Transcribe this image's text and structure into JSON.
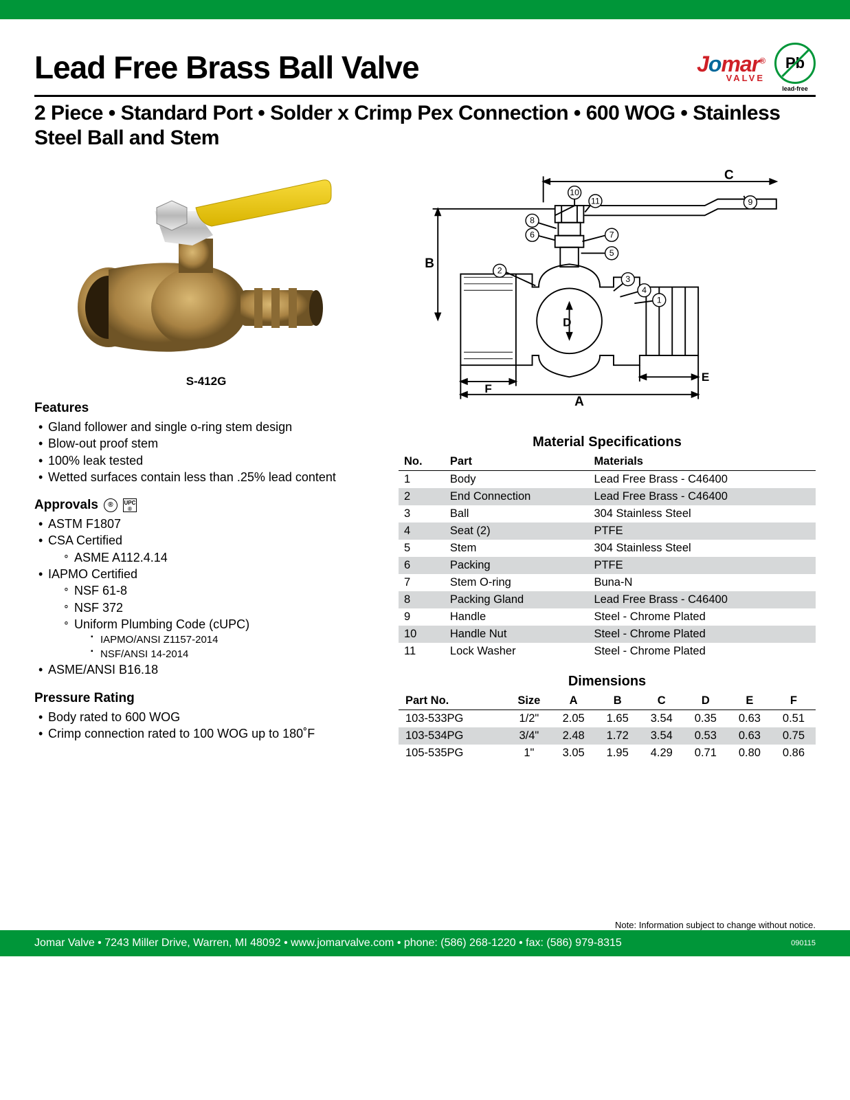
{
  "header": {
    "title": "Lead Free Brass Ball Valve",
    "subtitle": "2 Piece • Standard Port • Solder x Crimp Pex Connection • 600 WOG • Stainless Steel Ball and Stem",
    "brand_j": "J",
    "brand_o": "o",
    "brand_mar": "mar",
    "brand_sub": "VALVE",
    "pb_text": "Pb",
    "pb_label": "lead-free"
  },
  "model": "S-412G",
  "features": {
    "heading": "Features",
    "items": [
      "Gland follower and single o-ring stem design",
      "Blow-out proof stem",
      "100% leak tested",
      "Wetted surfaces contain less than .25% lead content"
    ]
  },
  "approvals": {
    "heading": "Approvals",
    "items": [
      {
        "text": "ASTM F1807"
      },
      {
        "text": "CSA Certified",
        "sub": [
          {
            "text": "ASME A112.4.14"
          }
        ]
      },
      {
        "text": "IAPMO Certified",
        "sub": [
          {
            "text": "NSF 61-8"
          },
          {
            "text": "NSF 372"
          },
          {
            "text": "Uniform Plumbing Code (cUPC)",
            "sub2": [
              "IAPMO/ANSI Z1157-2014",
              "NSF/ANSI 14-2014"
            ]
          }
        ]
      },
      {
        "text": "ASME/ANSI B16.18"
      }
    ]
  },
  "pressure": {
    "heading": "Pressure Rating",
    "items": [
      "Body rated to 600 WOG",
      "Crimp connection rated to 100 WOG up to 180˚F"
    ]
  },
  "materials": {
    "title": "Material Specifications",
    "headers": [
      "No.",
      "Part",
      "Materials"
    ],
    "rows": [
      [
        "1",
        "Body",
        "Lead Free Brass - C46400"
      ],
      [
        "2",
        "End Connection",
        "Lead Free Brass - C46400"
      ],
      [
        "3",
        "Ball",
        "304 Stainless Steel"
      ],
      [
        "4",
        "Seat (2)",
        "PTFE"
      ],
      [
        "5",
        "Stem",
        "304 Stainless Steel"
      ],
      [
        "6",
        "Packing",
        "PTFE"
      ],
      [
        "7",
        "Stem O-ring",
        "Buna-N"
      ],
      [
        "8",
        "Packing Gland",
        "Lead Free Brass - C46400"
      ],
      [
        "9",
        "Handle",
        "Steel - Chrome Plated"
      ],
      [
        "10",
        "Handle Nut",
        "Steel - Chrome Plated"
      ],
      [
        "11",
        "Lock Washer",
        "Steel - Chrome Plated"
      ]
    ]
  },
  "dimensions": {
    "title": "Dimensions",
    "headers": [
      "Part No.",
      "Size",
      "A",
      "B",
      "C",
      "D",
      "E",
      "F"
    ],
    "rows": [
      [
        "103-533PG",
        "1/2\"",
        "2.05",
        "1.65",
        "3.54",
        "0.35",
        "0.63",
        "0.51"
      ],
      [
        "103-534PG",
        "3/4\"",
        "2.48",
        "1.72",
        "3.54",
        "0.53",
        "0.63",
        "0.75"
      ],
      [
        "105-535PG",
        "1\"",
        "3.05",
        "1.95",
        "4.29",
        "0.71",
        "0.80",
        "0.86"
      ]
    ]
  },
  "diagram": {
    "labels": {
      "A": "A",
      "B": "B",
      "C": "C",
      "D": "D",
      "E": "E",
      "F": "F"
    },
    "callouts": [
      "1",
      "2",
      "3",
      "4",
      "5",
      "6",
      "7",
      "8",
      "9",
      "10",
      "11"
    ]
  },
  "note": "Note: Information subject to change without notice.",
  "footer": {
    "text": "Jomar Valve  •  7243 Miller Drive, Warren, MI 48092  •  www.jomarvalve.com  •  phone: (586) 268-1220  •  fax: (586) 979-8315",
    "code": "090115"
  },
  "colors": {
    "green": "#009639",
    "red": "#cf2027",
    "blue": "#00679a",
    "shade": "#d6d8d9",
    "brass": "#a88243",
    "brass_dark": "#6f5426",
    "yellow": "#f0ca14",
    "steel": "#c9c9c9"
  }
}
